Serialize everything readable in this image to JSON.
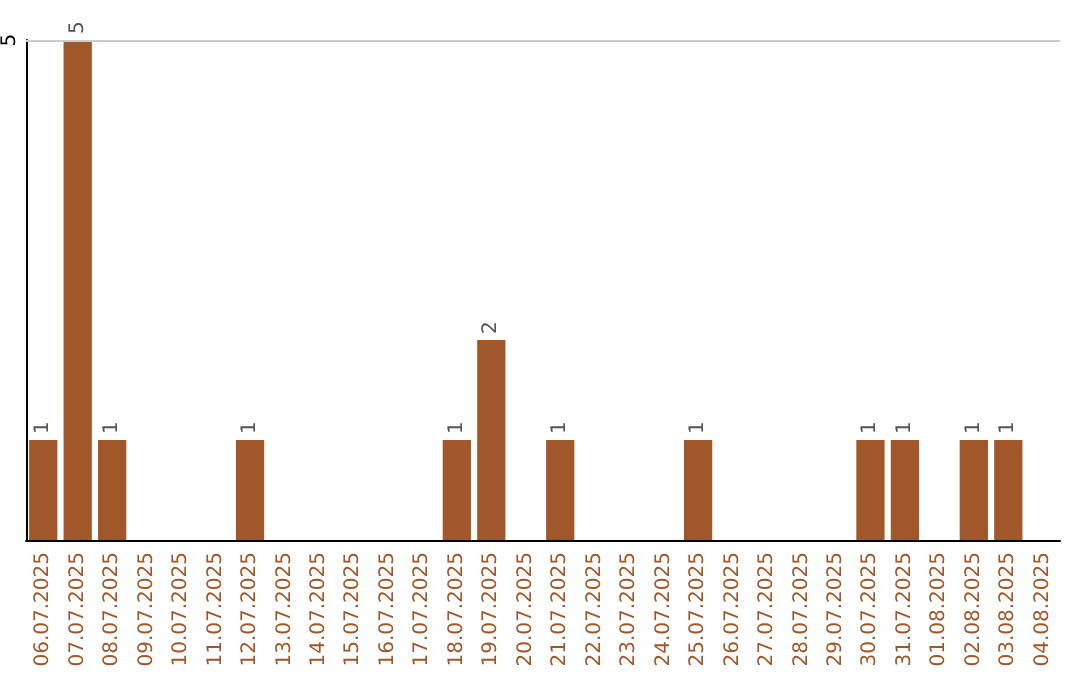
{
  "chart_data": {
    "type": "bar",
    "categories": [
      "06.07.2025",
      "07.07.2025",
      "08.07.2025",
      "09.07.2025",
      "10.07.2025",
      "11.07.2025",
      "12.07.2025",
      "13.07.2025",
      "14.07.2025",
      "15.07.2025",
      "16.07.2025",
      "17.07.2025",
      "18.07.2025",
      "19.07.2025",
      "20.07.2025",
      "21.07.2025",
      "22.07.2025",
      "23.07.2025",
      "24.07.2025",
      "25.07.2025",
      "26.07.2025",
      "27.07.2025",
      "28.07.2025",
      "29.07.2025",
      "30.07.2025",
      "31.07.2025",
      "01.08.2025",
      "02.08.2025",
      "03.08.2025",
      "04.08.2025"
    ],
    "values": [
      1,
      5,
      1,
      0,
      0,
      0,
      1,
      0,
      0,
      0,
      0,
      0,
      1,
      2,
      0,
      1,
      0,
      0,
      0,
      1,
      0,
      0,
      0,
      0,
      1,
      1,
      0,
      1,
      1,
      0
    ],
    "value_labels": [
      "1",
      "5",
      "1",
      null,
      null,
      null,
      "1",
      null,
      null,
      null,
      null,
      null,
      "1",
      "2",
      null,
      "1",
      null,
      null,
      null,
      "1",
      null,
      null,
      null,
      null,
      "1",
      "1",
      null,
      "1",
      "1",
      null
    ],
    "color": "#a0582a",
    "ylim": [
      0,
      5
    ],
    "yticks": [
      5
    ],
    "ref_lines": [
      {
        "axis": "y",
        "value": 5,
        "color": "#cccccc",
        "line_style": "solid"
      }
    ]
  }
}
